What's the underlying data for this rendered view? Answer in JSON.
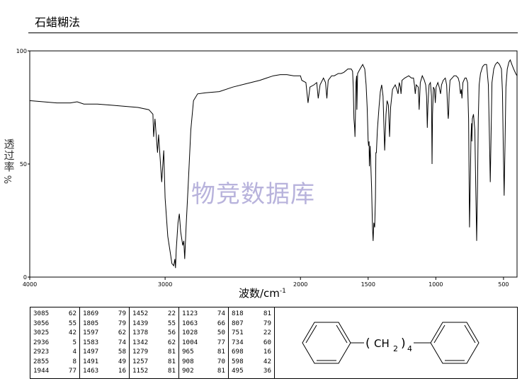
{
  "title": "石蜡糊法",
  "chart_data": {
    "type": "line",
    "title": "石蜡糊法",
    "xlabel_main": "波数/cm",
    "xlabel_exp": "-1",
    "ylabel_text": "透过率",
    "ylabel_unit": "%",
    "xlim": [
      4000,
      400
    ],
    "ylim": [
      0,
      100
    ],
    "x_ticks": [
      "4000",
      "3000",
      "2000",
      "1500",
      "1000",
      "500"
    ],
    "y_ticks": [
      "100",
      "50",
      "0"
    ],
    "series": [
      {
        "points": [
          [
            4000,
            78
          ],
          [
            3900,
            77.5
          ],
          [
            3800,
            77
          ],
          [
            3700,
            77
          ],
          [
            3650,
            77.5
          ],
          [
            3600,
            76.5
          ],
          [
            3500,
            76.5
          ],
          [
            3400,
            76
          ],
          [
            3300,
            75.5
          ],
          [
            3200,
            75
          ],
          [
            3120,
            74
          ],
          [
            3090,
            72
          ],
          [
            3085,
            62
          ],
          [
            3075,
            70
          ],
          [
            3056,
            55
          ],
          [
            3048,
            63
          ],
          [
            3025,
            42
          ],
          [
            3010,
            56
          ],
          [
            3000,
            35
          ],
          [
            2980,
            18
          ],
          [
            2960,
            10
          ],
          [
            2950,
            6
          ],
          [
            2936,
            5
          ],
          [
            2928,
            8
          ],
          [
            2923,
            4
          ],
          [
            2918,
            12
          ],
          [
            2905,
            24
          ],
          [
            2895,
            28
          ],
          [
            2885,
            20
          ],
          [
            2870,
            14
          ],
          [
            2862,
            16
          ],
          [
            2855,
            8
          ],
          [
            2845,
            22
          ],
          [
            2830,
            40
          ],
          [
            2810,
            65
          ],
          [
            2790,
            78
          ],
          [
            2760,
            81
          ],
          [
            2700,
            81.5
          ],
          [
            2600,
            82
          ],
          [
            2500,
            84
          ],
          [
            2400,
            85.5
          ],
          [
            2300,
            87
          ],
          [
            2250,
            88
          ],
          [
            2200,
            89
          ],
          [
            2150,
            89.5
          ],
          [
            2100,
            89.5
          ],
          [
            2050,
            89
          ],
          [
            2000,
            89
          ],
          [
            1990,
            87
          ],
          [
            1960,
            86
          ],
          [
            1944,
            77
          ],
          [
            1930,
            84
          ],
          [
            1900,
            85
          ],
          [
            1880,
            86
          ],
          [
            1869,
            79
          ],
          [
            1855,
            85
          ],
          [
            1830,
            88
          ],
          [
            1815,
            86
          ],
          [
            1805,
            79
          ],
          [
            1795,
            87
          ],
          [
            1770,
            89
          ],
          [
            1750,
            89
          ],
          [
            1720,
            90
          ],
          [
            1700,
            90
          ],
          [
            1680,
            90.5
          ],
          [
            1650,
            92
          ],
          [
            1625,
            92
          ],
          [
            1615,
            91
          ],
          [
            1610,
            84
          ],
          [
            1605,
            70
          ],
          [
            1600,
            66
          ],
          [
            1597,
            62
          ],
          [
            1594,
            71
          ],
          [
            1590,
            86
          ],
          [
            1585,
            89
          ],
          [
            1583,
            74
          ],
          [
            1578,
            90
          ],
          [
            1560,
            92
          ],
          [
            1540,
            94
          ],
          [
            1525,
            92
          ],
          [
            1515,
            85
          ],
          [
            1507,
            75
          ],
          [
            1500,
            60
          ],
          [
            1497,
            58
          ],
          [
            1493,
            60
          ],
          [
            1491,
            49
          ],
          [
            1485,
            58
          ],
          [
            1475,
            40
          ],
          [
            1468,
            22
          ],
          [
            1463,
            16
          ],
          [
            1458,
            24
          ],
          [
            1452,
            22
          ],
          [
            1446,
            35
          ],
          [
            1443,
            55
          ],
          [
            1439,
            55
          ],
          [
            1432,
            65
          ],
          [
            1420,
            75
          ],
          [
            1410,
            82
          ],
          [
            1400,
            85
          ],
          [
            1390,
            80
          ],
          [
            1378,
            56
          ],
          [
            1368,
            72
          ],
          [
            1360,
            78
          ],
          [
            1350,
            76
          ],
          [
            1342,
            62
          ],
          [
            1334,
            75
          ],
          [
            1320,
            83
          ],
          [
            1300,
            85
          ],
          [
            1288,
            83
          ],
          [
            1279,
            81
          ],
          [
            1270,
            86
          ],
          [
            1262,
            84
          ],
          [
            1257,
            81
          ],
          [
            1250,
            87
          ],
          [
            1230,
            88
          ],
          [
            1200,
            89
          ],
          [
            1180,
            88
          ],
          [
            1165,
            88
          ],
          [
            1158,
            85
          ],
          [
            1152,
            81
          ],
          [
            1145,
            85
          ],
          [
            1130,
            84
          ],
          [
            1123,
            74
          ],
          [
            1115,
            86
          ],
          [
            1100,
            89
          ],
          [
            1085,
            87
          ],
          [
            1075,
            85
          ],
          [
            1068,
            80
          ],
          [
            1063,
            66
          ],
          [
            1058,
            76
          ],
          [
            1050,
            85
          ],
          [
            1040,
            86
          ],
          [
            1032,
            80
          ],
          [
            1028,
            50
          ],
          [
            1024,
            72
          ],
          [
            1018,
            84
          ],
          [
            1010,
            83
          ],
          [
            1004,
            77
          ],
          [
            998,
            84
          ],
          [
            985,
            86
          ],
          [
            975,
            84
          ],
          [
            965,
            81
          ],
          [
            958,
            85
          ],
          [
            945,
            87
          ],
          [
            930,
            88
          ],
          [
            920,
            85
          ],
          [
            912,
            73
          ],
          [
            908,
            70
          ],
          [
            905,
            73
          ],
          [
            902,
            81
          ],
          [
            895,
            87
          ],
          [
            880,
            88
          ],
          [
            865,
            89
          ],
          [
            850,
            89
          ],
          [
            835,
            88
          ],
          [
            826,
            86
          ],
          [
            818,
            81
          ],
          [
            812,
            83
          ],
          [
            807,
            79
          ],
          [
            800,
            86
          ],
          [
            785,
            88
          ],
          [
            775,
            88
          ],
          [
            765,
            86
          ],
          [
            758,
            70
          ],
          [
            751,
            22
          ],
          [
            746,
            40
          ],
          [
            740,
            62
          ],
          [
            736,
            68
          ],
          [
            734,
            60
          ],
          [
            730,
            70
          ],
          [
            722,
            72
          ],
          [
            712,
            65
          ],
          [
            705,
            40
          ],
          [
            698,
            16
          ],
          [
            692,
            40
          ],
          [
            686,
            70
          ],
          [
            680,
            85
          ],
          [
            670,
            90
          ],
          [
            655,
            93
          ],
          [
            640,
            94
          ],
          [
            625,
            94
          ],
          [
            612,
            85
          ],
          [
            604,
            62
          ],
          [
            598,
            42
          ],
          [
            592,
            62
          ],
          [
            585,
            86
          ],
          [
            572,
            92
          ],
          [
            560,
            94
          ],
          [
            545,
            95
          ],
          [
            530,
            94
          ],
          [
            515,
            92
          ],
          [
            508,
            82
          ],
          [
            501,
            55
          ],
          [
            495,
            36
          ],
          [
            489,
            58
          ],
          [
            482,
            84
          ],
          [
            472,
            92
          ],
          [
            460,
            95
          ],
          [
            450,
            96
          ],
          [
            438,
            94
          ],
          [
            425,
            92
          ],
          [
            410,
            90
          ],
          [
            400,
            89
          ]
        ]
      }
    ]
  },
  "watermark": "物竞数据库",
  "peaks": [
    [
      [
        "3085",
        "62"
      ],
      [
        "3056",
        "55"
      ],
      [
        "3025",
        "42"
      ],
      [
        "2936",
        "5"
      ],
      [
        "2923",
        "4"
      ],
      [
        "2855",
        "8"
      ],
      [
        "1944",
        "77"
      ]
    ],
    [
      [
        "1869",
        "79"
      ],
      [
        "1805",
        "79"
      ],
      [
        "1597",
        "62"
      ],
      [
        "1583",
        "74"
      ],
      [
        "1497",
        "58"
      ],
      [
        "1491",
        "49"
      ],
      [
        "1463",
        "16"
      ]
    ],
    [
      [
        "1452",
        "22"
      ],
      [
        "1439",
        "55"
      ],
      [
        "1378",
        "56"
      ],
      [
        "1342",
        "62"
      ],
      [
        "1279",
        "81"
      ],
      [
        "1257",
        "81"
      ],
      [
        "1152",
        "81"
      ]
    ],
    [
      [
        "1123",
        "74"
      ],
      [
        "1063",
        "66"
      ],
      [
        "1028",
        "50"
      ],
      [
        "1004",
        "77"
      ],
      [
        "965",
        "81"
      ],
      [
        "908",
        "70"
      ],
      [
        "902",
        "81"
      ]
    ],
    [
      [
        "818",
        "81"
      ],
      [
        "807",
        "79"
      ],
      [
        "751",
        "22"
      ],
      [
        "734",
        "60"
      ],
      [
        "698",
        "16"
      ],
      [
        "598",
        "42"
      ],
      [
        "495",
        "36"
      ]
    ]
  ],
  "structure": {
    "chain_open": "(",
    "chain_group": "CH",
    "chain_sub": "2",
    "chain_close": ")",
    "chain_count": "4"
  }
}
